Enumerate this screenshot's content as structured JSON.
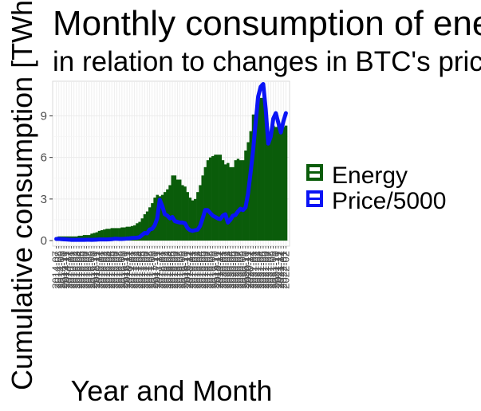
{
  "chart_data": {
    "type": "bar",
    "title": "Monthly consumption of energy",
    "subtitle": "in relation to changes in BTC's price",
    "xlabel": "Year and Month",
    "ylabel": "Cumulative consumption [TWh]",
    "ylim": [
      -0.4,
      11.5
    ],
    "yticks": [
      0,
      3,
      6,
      9
    ],
    "grid": true,
    "legend_position": "right",
    "x": [
      "2014-07",
      "2014-08",
      "2014-09",
      "2014-10",
      "2014-11",
      "2014-12",
      "2015-01",
      "2015-02",
      "2015-03",
      "2015-04",
      "2015-05",
      "2015-06",
      "2015-07",
      "2015-08",
      "2015-09",
      "2015-10",
      "2015-11",
      "2015-12",
      "2016-01",
      "2016-02",
      "2016-03",
      "2016-04",
      "2016-05",
      "2016-06",
      "2016-07",
      "2016-08",
      "2016-09",
      "2016-10",
      "2016-11",
      "2016-12",
      "2017-01",
      "2017-02",
      "2017-03",
      "2017-04",
      "2017-05",
      "2017-06",
      "2017-07",
      "2017-08",
      "2017-09",
      "2017-10",
      "2017-11",
      "2017-12",
      "2018-01",
      "2018-02",
      "2018-03",
      "2018-04",
      "2018-05",
      "2018-06",
      "2018-07",
      "2018-08",
      "2018-09",
      "2018-10",
      "2018-11",
      "2018-12",
      "2019-01",
      "2019-02",
      "2019-03",
      "2019-04",
      "2019-05",
      "2019-06",
      "2019-07",
      "2019-08",
      "2019-09",
      "2019-10",
      "2019-11",
      "2019-12",
      "2020-01",
      "2020-02",
      "2020-03",
      "2020-04",
      "2020-05",
      "2020-06",
      "2020-07",
      "2020-08",
      "2020-09",
      "2020-10",
      "2020-11",
      "2020-12",
      "2021-01",
      "2021-02",
      "2021-03",
      "2021-04",
      "2021-05",
      "2021-06",
      "2021-07",
      "2021-08",
      "2021-09",
      "2021-10",
      "2021-11",
      "2021-12",
      "2022-01",
      "2022-02"
    ],
    "series": [
      {
        "name": "Energy",
        "color": "#0a5c0a",
        "values": [
          0.2,
          0.3,
          0.3,
          0.3,
          0.3,
          0.3,
          0.3,
          0.3,
          0.3,
          0.35,
          0.35,
          0.4,
          0.4,
          0.4,
          0.5,
          0.55,
          0.6,
          0.7,
          0.75,
          0.8,
          0.85,
          0.85,
          0.9,
          0.9,
          0.9,
          0.9,
          0.95,
          0.95,
          1.0,
          1.0,
          1.05,
          1.1,
          1.25,
          1.35,
          1.6,
          1.9,
          2.1,
          2.4,
          2.7,
          3.1,
          3.3,
          3.2,
          3.3,
          3.5,
          3.7,
          4.0,
          4.7,
          4.7,
          4.4,
          4.4,
          4.0,
          3.9,
          3.5,
          3.1,
          2.9,
          3.0,
          3.5,
          4.0,
          4.7,
          5.3,
          5.8,
          6.0,
          6.1,
          6.2,
          6.2,
          6.2,
          5.8,
          5.5,
          5.6,
          5.3,
          5.3,
          5.8,
          5.9,
          5.8,
          5.8,
          6.5,
          7.1,
          7.9,
          9.1,
          9.0,
          10.0,
          10.3,
          10.3,
          9.0,
          7.5,
          7.8,
          8.3,
          8.2,
          8.3,
          8.2,
          8.2,
          8.3
        ]
      },
      {
        "name": "Price/5000",
        "color": "#0a14f5",
        "values": [
          0.12,
          0.12,
          0.1,
          0.09,
          0.08,
          0.07,
          0.05,
          0.05,
          0.05,
          0.05,
          0.05,
          0.05,
          0.06,
          0.06,
          0.05,
          0.06,
          0.07,
          0.08,
          0.08,
          0.08,
          0.08,
          0.09,
          0.1,
          0.13,
          0.13,
          0.12,
          0.12,
          0.13,
          0.15,
          0.16,
          0.19,
          0.2,
          0.21,
          0.25,
          0.4,
          0.55,
          0.52,
          0.8,
          0.85,
          1.1,
          1.6,
          2.95,
          2.5,
          1.9,
          1.8,
          1.6,
          1.7,
          1.4,
          1.35,
          1.3,
          1.3,
          1.25,
          0.9,
          0.75,
          0.7,
          0.75,
          0.78,
          1.05,
          1.6,
          2.2,
          2.2,
          2.0,
          1.8,
          1.7,
          1.6,
          1.55,
          1.8,
          1.9,
          1.3,
          1.5,
          1.8,
          1.85,
          2.1,
          2.3,
          2.2,
          2.4,
          3.4,
          4.9,
          6.5,
          8.5,
          10.4,
          11.1,
          11.3,
          9.5,
          7.0,
          7.5,
          8.8,
          9.2,
          8.5,
          7.8,
          8.6,
          9.2
        ]
      }
    ]
  }
}
